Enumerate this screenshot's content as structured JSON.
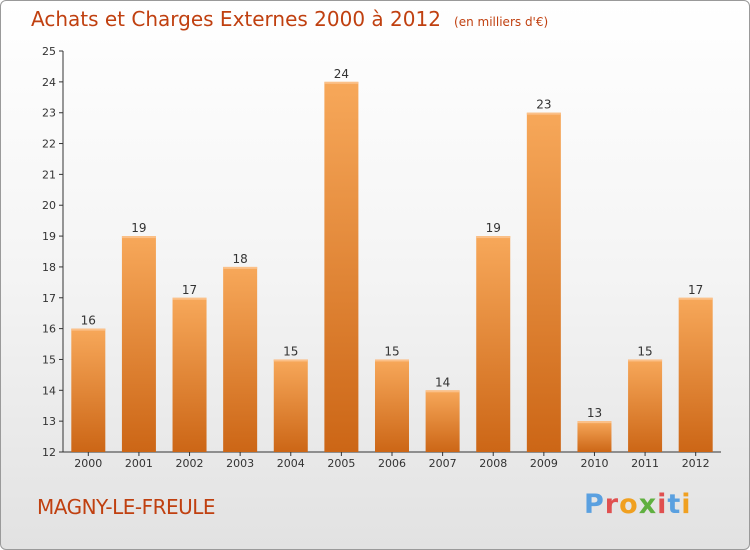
{
  "title": "Achats et Charges Externes 2000 à 2012",
  "subtitle": "(en milliers d'€)",
  "town": "MAGNY-LE-FREULE",
  "logo": [
    "P",
    "r",
    "o",
    "x",
    "i",
    "t",
    "i"
  ],
  "chart_data": {
    "type": "bar",
    "title": "Achats et Charges Externes 2000 à 2012",
    "subtitle": "(en milliers d'€)",
    "xlabel": "",
    "ylabel": "",
    "categories": [
      "2000",
      "2001",
      "2002",
      "2003",
      "2004",
      "2005",
      "2006",
      "2007",
      "2008",
      "2009",
      "2010",
      "2011",
      "2012"
    ],
    "values": [
      16,
      19,
      17,
      18,
      15,
      24,
      15,
      14,
      19,
      23,
      13,
      15,
      17
    ],
    "ylim": [
      12,
      25
    ],
    "yticks": [
      12,
      13,
      14,
      15,
      16,
      17,
      18,
      19,
      20,
      21,
      22,
      23,
      24,
      25
    ],
    "grid": false,
    "bar_color": "#f08a30"
  }
}
